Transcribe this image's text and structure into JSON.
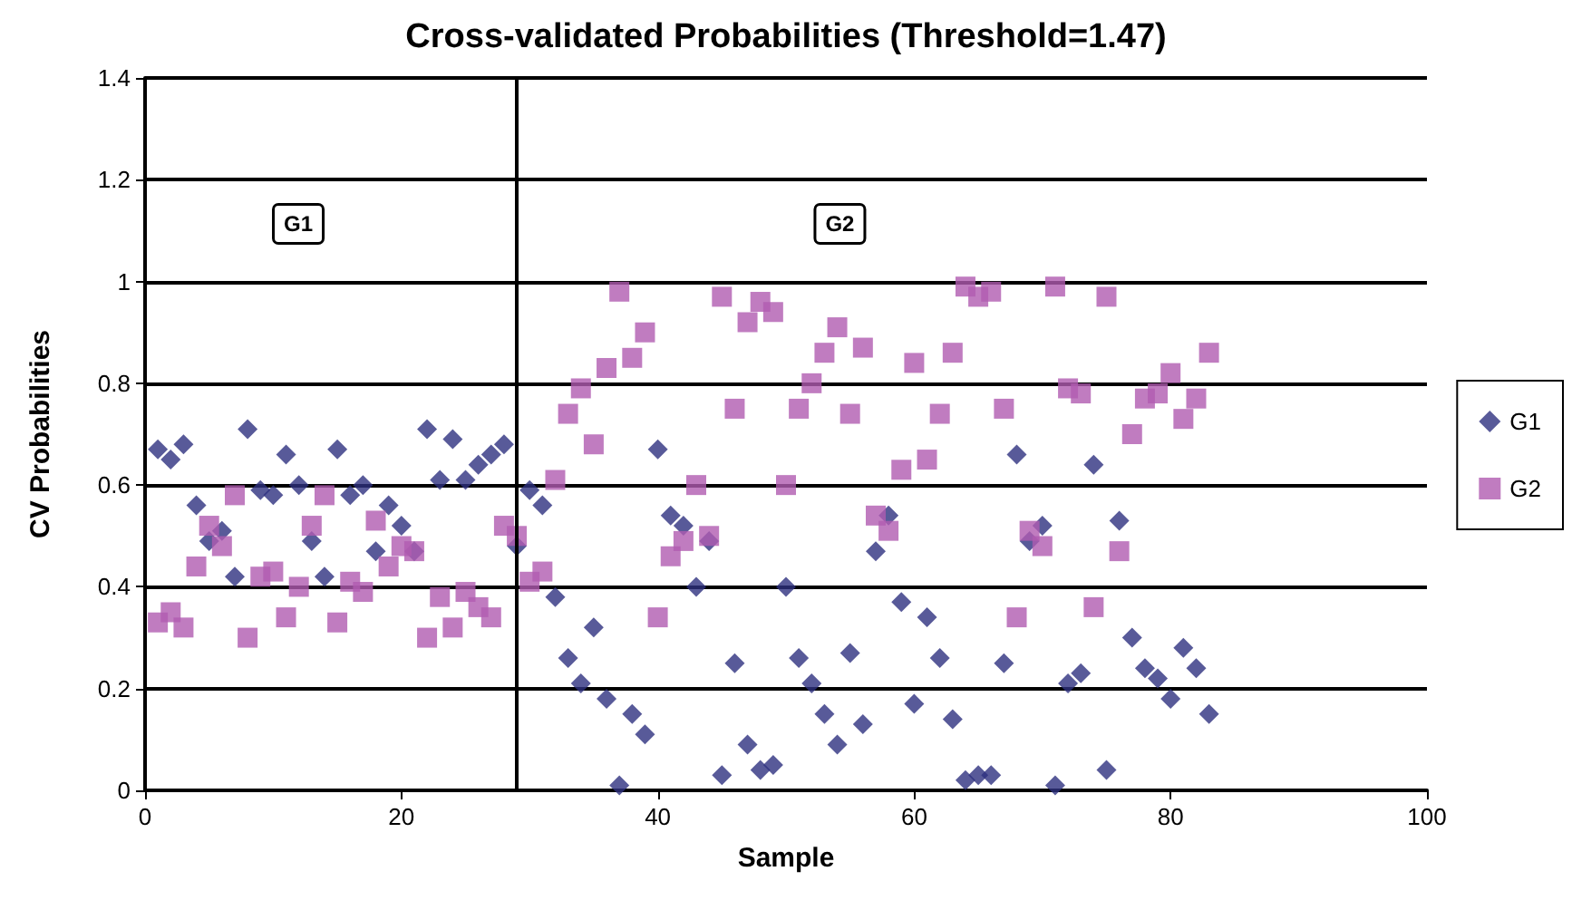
{
  "chart_data": {
    "type": "scatter",
    "title": "Cross-validated Probabilities (Threshold=1.47)",
    "xlabel": "Sample",
    "ylabel": "CV Probabilities",
    "x": [
      1,
      2,
      3,
      4,
      5,
      6,
      7,
      8,
      9,
      10,
      11,
      12,
      13,
      14,
      15,
      16,
      17,
      18,
      19,
      20,
      21,
      22,
      23,
      24,
      25,
      26,
      27,
      28,
      29,
      30,
      31,
      32,
      33,
      34,
      35,
      36,
      37,
      38,
      39,
      40,
      41,
      42,
      43,
      44,
      45,
      46,
      47,
      48,
      49,
      50,
      51,
      52,
      53,
      54,
      55,
      56,
      57,
      58,
      59,
      60,
      61,
      62,
      63,
      64,
      65,
      66,
      67,
      68,
      69,
      70,
      71,
      72,
      73,
      74,
      75,
      76,
      77,
      78,
      79,
      80,
      81,
      82,
      83
    ],
    "series": [
      {
        "name": "G1",
        "color": "#2e3180",
        "marker": "diamond",
        "values": [
          0.67,
          0.65,
          0.68,
          0.56,
          0.49,
          0.51,
          0.42,
          0.71,
          0.59,
          0.58,
          0.66,
          0.6,
          0.49,
          0.42,
          0.67,
          0.58,
          0.6,
          0.47,
          0.56,
          0.52,
          0.47,
          0.71,
          0.61,
          0.69,
          0.61,
          0.64,
          0.66,
          0.68,
          0.48,
          0.59,
          0.56,
          0.38,
          0.26,
          0.21,
          0.32,
          0.18,
          0.01,
          0.15,
          0.11,
          0.67,
          0.54,
          0.52,
          0.4,
          0.49,
          0.03,
          0.25,
          0.09,
          0.04,
          0.05,
          0.4,
          0.26,
          0.21,
          0.15,
          0.09,
          0.27,
          0.13,
          0.47,
          0.54,
          0.37,
          0.17,
          0.34,
          0.26,
          0.14,
          0.02,
          0.03,
          0.03,
          0.25,
          0.66,
          0.49,
          0.52,
          0.01,
          0.21,
          0.23,
          0.64,
          0.04,
          0.53,
          0.3,
          0.24,
          0.22,
          0.18,
          0.28,
          0.24,
          0.15
        ]
      },
      {
        "name": "G2",
        "color": "#b05bb0",
        "marker": "square",
        "values": [
          0.33,
          0.35,
          0.32,
          0.44,
          0.52,
          0.48,
          0.58,
          0.3,
          0.42,
          0.43,
          0.34,
          0.4,
          0.52,
          0.58,
          0.33,
          0.41,
          0.39,
          0.53,
          0.44,
          0.48,
          0.47,
          0.3,
          0.38,
          0.32,
          0.39,
          0.36,
          0.34,
          0.52,
          0.5,
          0.41,
          0.43,
          0.61,
          0.74,
          0.79,
          0.68,
          0.83,
          0.98,
          0.85,
          0.9,
          0.34,
          0.46,
          0.49,
          0.6,
          0.5,
          0.97,
          0.75,
          0.92,
          0.96,
          0.94,
          0.6,
          0.75,
          0.8,
          0.86,
          0.91,
          0.74,
          0.87,
          0.54,
          0.51,
          0.63,
          0.84,
          0.65,
          0.74,
          0.86,
          0.99,
          0.97,
          0.98,
          0.75,
          0.34,
          0.51,
          0.48,
          0.99,
          0.79,
          0.78,
          0.36,
          0.97,
          0.47,
          0.7,
          0.77,
          0.78,
          0.82,
          0.73,
          0.77,
          0.86
        ]
      }
    ],
    "xlim": [
      0,
      100
    ],
    "xticks": [
      0,
      20,
      40,
      60,
      80,
      100
    ],
    "ylim": [
      0,
      1.4
    ],
    "yticks": [
      0,
      0.2,
      0.4,
      0.6,
      0.8,
      1,
      1.2,
      1.4
    ],
    "grid": "y",
    "legend": "right",
    "ref_lines": [
      {
        "axis": "x",
        "value": 29,
        "color": "#000000"
      }
    ],
    "annotations": [
      "G1",
      "G2"
    ]
  }
}
